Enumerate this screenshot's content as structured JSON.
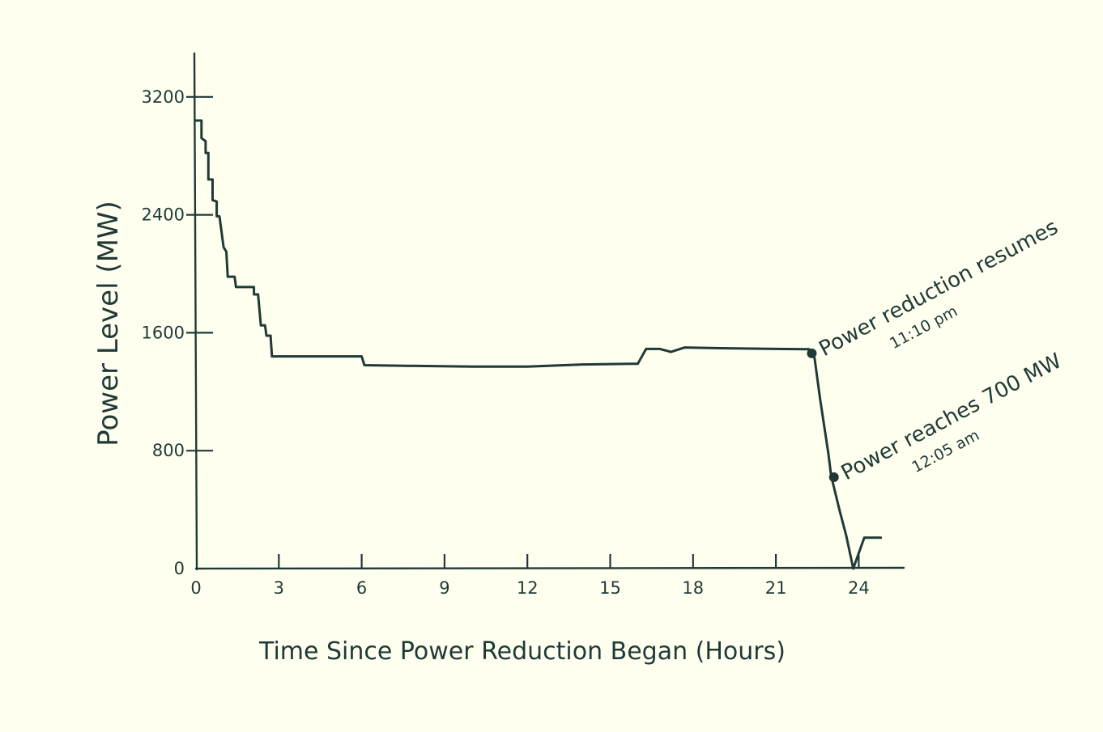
{
  "chart_data": {
    "type": "line",
    "title": "",
    "xlabel": "Time Since Power Reduction  Began (Hours)",
    "ylabel": "Power Level (MW)",
    "xlim": [
      0,
      25.5
    ],
    "ylim": [
      0,
      3500
    ],
    "x_ticks": [
      0,
      3,
      6,
      9,
      12,
      15,
      18,
      21,
      24
    ],
    "x_tick_labels": [
      "0",
      "3",
      "6",
      "9",
      "12",
      "15",
      "18",
      "21",
      "24"
    ],
    "y_ticks": [
      0,
      800,
      1600,
      2400,
      3200
    ],
    "y_tick_labels": [
      "0",
      "800",
      "1600",
      "2400",
      "3200"
    ],
    "grid": false,
    "color": "#1f3a36",
    "series": [
      {
        "points": [
          [
            0.0,
            3040
          ],
          [
            0.2,
            3040
          ],
          [
            0.2,
            2920
          ],
          [
            0.35,
            2900
          ],
          [
            0.35,
            2820
          ],
          [
            0.45,
            2820
          ],
          [
            0.45,
            2640
          ],
          [
            0.6,
            2640
          ],
          [
            0.6,
            2500
          ],
          [
            0.75,
            2490
          ],
          [
            0.75,
            2390
          ],
          [
            0.85,
            2390
          ],
          [
            1.0,
            2180
          ],
          [
            1.1,
            2150
          ],
          [
            1.15,
            1980
          ],
          [
            1.4,
            1980
          ],
          [
            1.45,
            1910
          ],
          [
            2.1,
            1910
          ],
          [
            2.1,
            1860
          ],
          [
            2.25,
            1860
          ],
          [
            2.35,
            1650
          ],
          [
            2.5,
            1650
          ],
          [
            2.55,
            1580
          ],
          [
            2.7,
            1580
          ],
          [
            2.75,
            1440
          ],
          [
            6.0,
            1440
          ],
          [
            6.1,
            1380
          ],
          [
            8.0,
            1375
          ],
          [
            10.0,
            1370
          ],
          [
            12.0,
            1370
          ],
          [
            14.0,
            1385
          ],
          [
            15.8,
            1390
          ],
          [
            16.0,
            1390
          ],
          [
            16.3,
            1490
          ],
          [
            16.8,
            1490
          ],
          [
            17.2,
            1470
          ],
          [
            17.7,
            1500
          ],
          [
            19.0,
            1495
          ],
          [
            21.0,
            1490
          ],
          [
            22.2,
            1488
          ],
          [
            22.4,
            1430
          ],
          [
            22.6,
            1150
          ],
          [
            22.9,
            780
          ],
          [
            23.0,
            630
          ],
          [
            23.3,
            400
          ],
          [
            23.55,
            220
          ],
          [
            23.8,
            0
          ],
          [
            24.2,
            210
          ],
          [
            24.8,
            210
          ]
        ]
      }
    ],
    "annotations": [
      {
        "x": 22.3,
        "y": 1460,
        "text": "Power reduction resumes",
        "subtext": "11:10 pm"
      },
      {
        "x": 23.1,
        "y": 620,
        "text": "Power reaches 700 MW",
        "subtext": "12:05 am"
      }
    ]
  }
}
